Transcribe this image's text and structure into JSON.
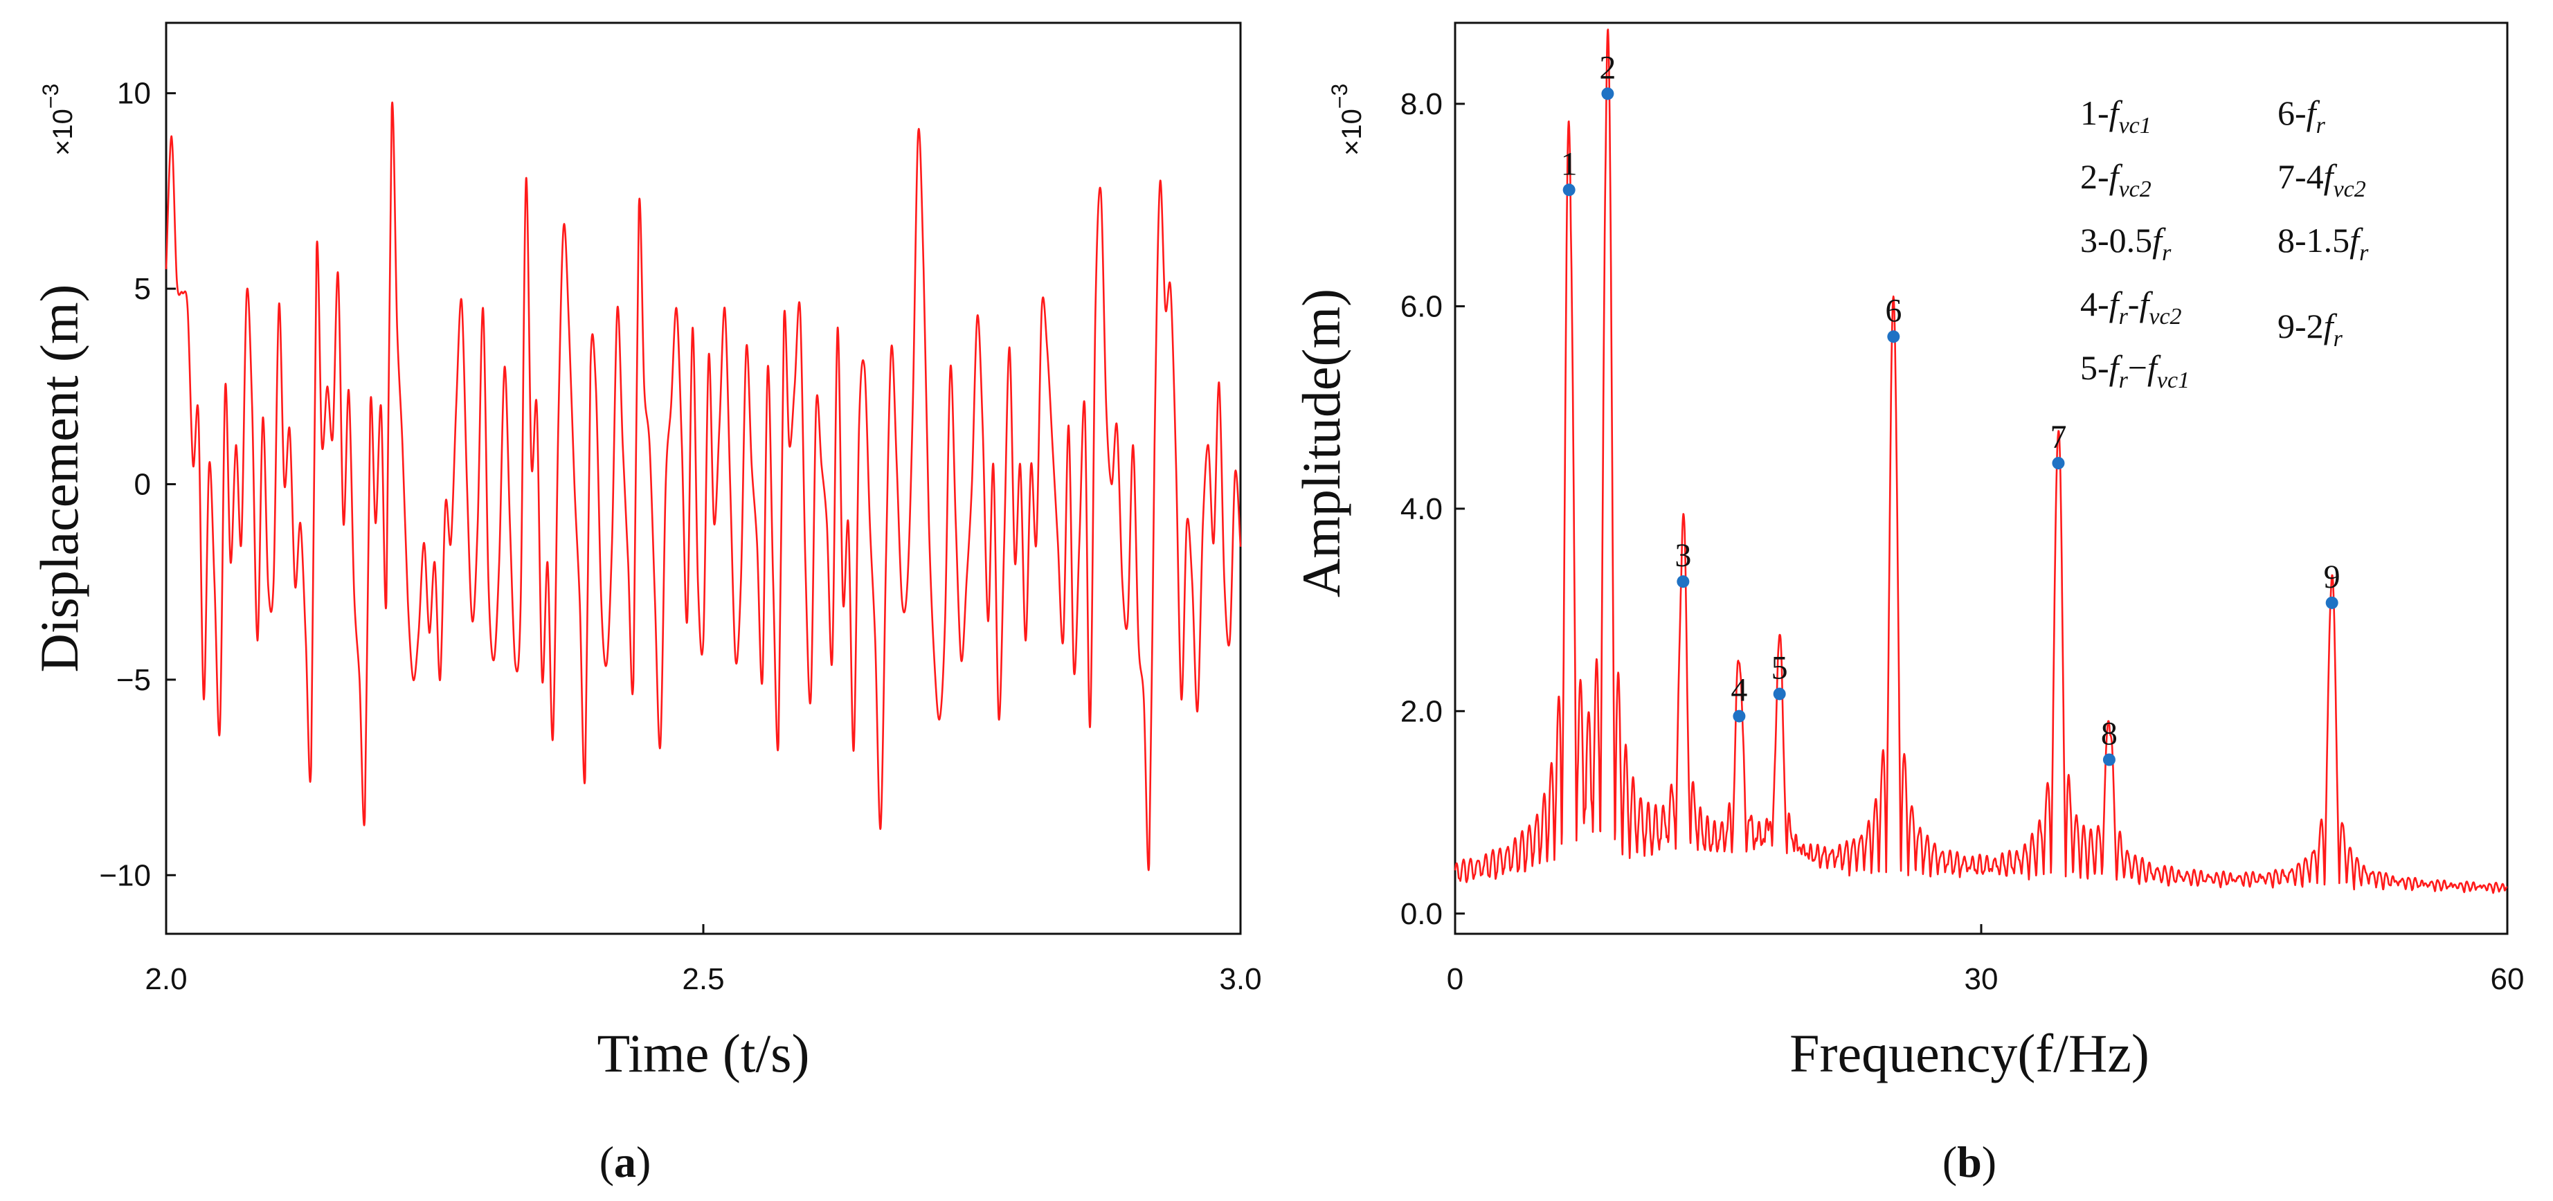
{
  "chart_data": [
    {
      "type": "line",
      "panel_label": "a",
      "title": "",
      "xlabel": "Time (t/s)",
      "ylabel": "Displacement  (m)",
      "y_scale_prefix": "×10",
      "y_scale_exponent": "−3",
      "xlim": [
        2.0,
        3.0
      ],
      "ylim": [
        -11.5,
        11.8
      ],
      "xticks": [
        2.0,
        2.5,
        3.0
      ],
      "xtick_labels": [
        "2.0",
        "2.5",
        "3.0"
      ],
      "yticks": [
        10,
        5,
        0,
        -5,
        -10
      ],
      "ytick_labels": [
        "10",
        "5",
        "0",
        "−5",
        "−10"
      ],
      "grid": false,
      "series": [
        {
          "name": "Displacement",
          "color": "#ff1a1a",
          "x": [
            2.0,
            2.005,
            2.01,
            2.015,
            2.02,
            2.025,
            2.03,
            2.035,
            2.04,
            2.045,
            2.05,
            2.055,
            2.06,
            2.065,
            2.07,
            2.075,
            2.08,
            2.085,
            2.09,
            2.095,
            2.1,
            2.105,
            2.11,
            2.115,
            2.12,
            2.125,
            2.13,
            2.135,
            2.14,
            2.145,
            2.15,
            2.155,
            2.16,
            2.165,
            2.17,
            2.175,
            2.18,
            2.185,
            2.19,
            2.195,
            2.2,
            2.205,
            2.21,
            2.215,
            2.22,
            2.225,
            2.23,
            2.235,
            2.24,
            2.245,
            2.25,
            2.255,
            2.26,
            2.265,
            2.27,
            2.275,
            2.28,
            2.285,
            2.29,
            2.295,
            2.3,
            2.305,
            2.31,
            2.315,
            2.32,
            2.325,
            2.33,
            2.335,
            2.34,
            2.345,
            2.35,
            2.355,
            2.36,
            2.365,
            2.37,
            2.375,
            2.38,
            2.385,
            2.39,
            2.395,
            2.4,
            2.405,
            2.41,
            2.415,
            2.42,
            2.425,
            2.43,
            2.435,
            2.44,
            2.445,
            2.45,
            2.455,
            2.46,
            2.465,
            2.47,
            2.475,
            2.48,
            2.485,
            2.49,
            2.495,
            2.5,
            2.505,
            2.51,
            2.515,
            2.52,
            2.525,
            2.53,
            2.535,
            2.54,
            2.545,
            2.55,
            2.555,
            2.56,
            2.565,
            2.57,
            2.575,
            2.58,
            2.585,
            2.59,
            2.595,
            2.6,
            2.605,
            2.61,
            2.615,
            2.62,
            2.625,
            2.63,
            2.635,
            2.64,
            2.645,
            2.65,
            2.655,
            2.66,
            2.665,
            2.67,
            2.675,
            2.68,
            2.685,
            2.69,
            2.695,
            2.7,
            2.705,
            2.71,
            2.715,
            2.72,
            2.725,
            2.73,
            2.735,
            2.74,
            2.745,
            2.75,
            2.755,
            2.76,
            2.765,
            2.77,
            2.775,
            2.78,
            2.785,
            2.79,
            2.795,
            2.8,
            2.805,
            2.81,
            2.815,
            2.82,
            2.825,
            2.83,
            2.835,
            2.84,
            2.845,
            2.85,
            2.855,
            2.86,
            2.865,
            2.87,
            2.875,
            2.88,
            2.885,
            2.89,
            2.895,
            2.9,
            2.905,
            2.91,
            2.915,
            2.92,
            2.925,
            2.93,
            2.935,
            2.94,
            2.945,
            2.95,
            2.955,
            2.96,
            2.965,
            2.97,
            2.975,
            2.98,
            2.985,
            2.99,
            2.995,
            3.0
          ],
          "y": [
            5.5,
            8.9,
            5.2,
            4.9,
            4.5,
            0.5,
            1.8,
            -5.5,
            0.5,
            -2.5,
            -6.3,
            2.5,
            -2.0,
            1.0,
            -1.5,
            4.9,
            2.0,
            -4.0,
            1.7,
            -2.6,
            -2.5,
            4.6,
            0.0,
            1.4,
            -2.6,
            -1.0,
            -4.0,
            -7.2,
            6.0,
            1.0,
            2.5,
            1.2,
            5.4,
            -1.0,
            2.4,
            -2.8,
            -5.0,
            -8.5,
            2.0,
            -1.0,
            2.0,
            -3.0,
            9.6,
            4.0,
            1.0,
            -3.0,
            -5.0,
            -3.8,
            -1.5,
            -3.8,
            -2.0,
            -5.0,
            -0.5,
            -1.5,
            2.0,
            4.7,
            0.0,
            -3.5,
            -1.0,
            4.5,
            -2.5,
            -4.5,
            -2.0,
            3.0,
            -1.0,
            -4.6,
            -3.0,
            7.8,
            0.5,
            2.0,
            -5.0,
            -2.0,
            -6.5,
            1.5,
            6.6,
            4.0,
            0.0,
            -3.0,
            -7.5,
            3.0,
            2.5,
            -3.0,
            -4.6,
            -1.5,
            4.5,
            1.0,
            -2.0,
            -5.0,
            7.1,
            2.5,
            1.0,
            -3.0,
            -6.7,
            0.0,
            2.0,
            4.5,
            1.0,
            -3.5,
            4.0,
            -2.5,
            -4.0,
            3.3,
            -1.0,
            1.5,
            4.5,
            0.0,
            -4.5,
            -2.5,
            3.5,
            0.5,
            -1.5,
            -5.0,
            3.0,
            -2.5,
            -6.6,
            4.2,
            1.0,
            2.5,
            4.5,
            -2.0,
            -5.5,
            2.0,
            0.5,
            -1.0,
            -4.5,
            4.0,
            -3.0,
            -1.0,
            -6.8,
            1.5,
            3.0,
            -1.0,
            -4.0,
            -8.8,
            -2.0,
            3.5,
            0.5,
            -3.0,
            -2.5,
            2.0,
            9.0,
            5.5,
            -1.0,
            -4.5,
            -6.0,
            -3.5,
            3.0,
            -1.0,
            -4.5,
            -2.5,
            0.0,
            4.3,
            1.5,
            -3.5,
            0.5,
            -6.0,
            -1.5,
            3.5,
            -2.0,
            0.5,
            -4.0,
            0.5,
            -1.5,
            4.5,
            3.5,
            1.0,
            -1.5,
            -4.0,
            1.5,
            -4.8,
            -1.5,
            2.0,
            -6.2,
            4.5,
            7.5,
            2.0,
            0.0,
            1.5,
            -2.5,
            -3.5,
            1.0,
            -4.0,
            -5.5,
            -9.7,
            1.0,
            7.7,
            4.5,
            5.0,
            0.5,
            -5.5,
            -1.0,
            -2.5,
            -5.8,
            -1.0,
            1.0,
            -1.5,
            2.6,
            -2.5,
            -4.0,
            0.3,
            -1.6
          ]
        }
      ]
    },
    {
      "type": "line",
      "panel_label": "b",
      "title": "",
      "xlabel": "Frequency(f/Hz)",
      "ylabel": "Amplitude(m)",
      "y_scale_prefix": "×10",
      "y_scale_exponent": "−3",
      "xlim": [
        0,
        60
      ],
      "ylim": [
        -0.2,
        8.8
      ],
      "xticks": [
        0,
        30,
        60
      ],
      "xtick_labels": [
        "0",
        "30",
        "60"
      ],
      "yticks": [
        0,
        2,
        4,
        6,
        8
      ],
      "ytick_labels": [
        "0.0",
        "2.0",
        "4.0",
        "6.0",
        "8.0"
      ],
      "grid": false,
      "peaks": [
        {
          "label": "1",
          "frequency": 6.5,
          "amplitude": 7.15
        },
        {
          "label": "2",
          "frequency": 8.7,
          "amplitude": 8.1
        },
        {
          "label": "3",
          "frequency": 13.0,
          "amplitude": 3.28
        },
        {
          "label": "4",
          "frequency": 16.2,
          "amplitude": 1.95
        },
        {
          "label": "5",
          "frequency": 18.5,
          "amplitude": 2.17
        },
        {
          "label": "6",
          "frequency": 25.0,
          "amplitude": 5.7
        },
        {
          "label": "7",
          "frequency": 34.4,
          "amplitude": 4.45
        },
        {
          "label": "8",
          "frequency": 37.3,
          "amplitude": 1.52
        },
        {
          "label": "9",
          "frequency": 50.0,
          "amplitude": 3.07
        }
      ],
      "peak_marker_color": "#1f72c4",
      "line_color": "#ff1a1a",
      "legend_position": "top-right",
      "legend": [
        {
          "num": "1",
          "expr": "f",
          "sub": "vc1",
          "prefix": ""
        },
        {
          "num": "2",
          "expr": "f",
          "sub": "vc2",
          "prefix": ""
        },
        {
          "num": "3",
          "expr": "f",
          "sub": "r",
          "prefix": "0.5"
        },
        {
          "num": "4",
          "expr": "f",
          "sub": "r",
          "prefix": "",
          "suffix_expr": "f",
          "suffix_sub": "vc2",
          "joiner": "-"
        },
        {
          "num": "5",
          "expr": "f",
          "sub": "r",
          "prefix": "",
          "suffix_expr": "f",
          "suffix_sub": "vc1",
          "joiner": "−"
        },
        {
          "num": "6",
          "expr": "f",
          "sub": "r",
          "prefix": ""
        },
        {
          "num": "7",
          "expr": "f",
          "sub": "vc2",
          "prefix": "4"
        },
        {
          "num": "8",
          "expr": "f",
          "sub": "r",
          "prefix": "1.5"
        },
        {
          "num": "9",
          "expr": "f",
          "sub": "r",
          "prefix": "2"
        }
      ]
    }
  ]
}
